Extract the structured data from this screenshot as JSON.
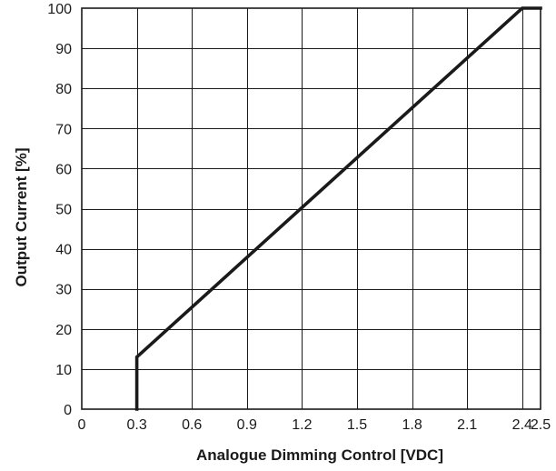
{
  "chart_data": {
    "type": "line",
    "title": "",
    "xlabel": "Analogue Dimming Control [VDC]",
    "ylabel": "Output Current [%]",
    "xlim": [
      0,
      2.5
    ],
    "ylim": [
      0,
      100
    ],
    "x_ticks": [
      0,
      0.3,
      0.6,
      0.9,
      1.2,
      1.5,
      1.8,
      2.1,
      2.4,
      2.5
    ],
    "x_tick_labels": [
      "0",
      "0.3",
      "0.6",
      "0.9",
      "1.2",
      "1.5",
      "1.8",
      "2.1",
      "2.4",
      "2.5"
    ],
    "y_ticks": [
      0,
      10,
      20,
      30,
      40,
      50,
      60,
      70,
      80,
      90,
      100
    ],
    "y_tick_labels": [
      "0",
      "10",
      "20",
      "30",
      "40",
      "50",
      "60",
      "70",
      "80",
      "90",
      "100"
    ],
    "grid": true,
    "series": [
      {
        "color": "#1a1a1a",
        "x": [
          0.3,
          0.3,
          2.4,
          2.5
        ],
        "y": [
          0,
          13,
          100,
          100
        ]
      }
    ]
  }
}
